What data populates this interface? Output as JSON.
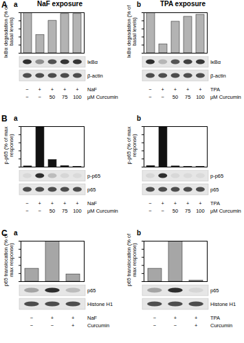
{
  "chart_data": [
    {
      "type": "bar",
      "title": "NaF exposure",
      "y_label": "IκBα degradation (% of basal levels)",
      "categories": [
        null,
        null,
        null,
        null,
        null
      ],
      "values": [
        100,
        45,
        80,
        97,
        97
      ],
      "color": "#b3b3b3",
      "ylim": [
        0,
        100
      ],
      "yticks": [
        0,
        20,
        40,
        60,
        80,
        100
      ],
      "tick_labels": false,
      "annotations": {
        "panel": "A",
        "subpanel": "a",
        "blot_labels": [
          "IκBα",
          "β-actin"
        ],
        "conditions": [
          {
            "label": "NaF",
            "values": [
              "−",
              "+",
              "+",
              "+",
              "+"
            ]
          },
          {
            "label": "µM Curcumin",
            "values": [
              "−",
              "−",
              "50",
              "75",
              "100"
            ]
          }
        ]
      }
    },
    {
      "type": "bar",
      "title": "TPA exposure",
      "y_label": "IκBα degradation (% of basal levels)",
      "categories": [
        null,
        null,
        null,
        null,
        null
      ],
      "values": [
        100,
        22,
        78,
        90,
        95
      ],
      "color": "#b3b3b3",
      "ylim": [
        0,
        100
      ],
      "yticks": [
        0,
        20,
        40,
        60,
        80,
        100
      ],
      "tick_labels": false,
      "annotations": {
        "subpanel": "b",
        "blot_labels": [
          "IκBα",
          "β-actin"
        ],
        "conditions": [
          {
            "label": "TPA",
            "values": [
              "−",
              "+",
              "+",
              "+",
              "+"
            ]
          },
          {
            "label": "µM Curcumin",
            "values": [
              "−",
              "−",
              "50",
              "75",
              "100"
            ]
          }
        ]
      }
    },
    {
      "type": "bar",
      "y_label": "p-p65 (% of max response)",
      "categories": [
        null,
        null,
        null,
        null,
        null
      ],
      "values": [
        2,
        100,
        18,
        3,
        1
      ],
      "color": "#111111",
      "ylim": [
        0,
        100
      ],
      "yticks": [
        0,
        20,
        40,
        60,
        80,
        100
      ],
      "tick_labels": false,
      "annotations": {
        "panel": "B",
        "subpanel": "a",
        "blot_labels": [
          "p-p65",
          "p65"
        ],
        "conditions": [
          {
            "label": "NaF",
            "values": [
              "−",
              "+",
              "+",
              "+",
              "+"
            ]
          },
          {
            "label": "µM Curcumin",
            "values": [
              "−",
              "−",
              "50",
              "75",
              "100"
            ]
          }
        ]
      }
    },
    {
      "type": "bar",
      "y_label": "p-p65 (% of max response)",
      "categories": [
        null,
        null,
        null,
        null,
        null
      ],
      "values": [
        3,
        100,
        2,
        1,
        1
      ],
      "color": "#111111",
      "ylim": [
        0,
        100
      ],
      "yticks": [
        0,
        20,
        40,
        60,
        80,
        100
      ],
      "tick_labels": false,
      "annotations": {
        "subpanel": "b",
        "blot_labels": [
          "p-p65",
          "p65"
        ],
        "conditions": [
          {
            "label": "TPA",
            "values": [
              "−",
              "+",
              "+",
              "+",
              "+"
            ]
          },
          {
            "label": "µM Curcumin",
            "values": [
              "−",
              "−",
              "50",
              "75",
              "100"
            ]
          }
        ]
      }
    },
    {
      "type": "bar",
      "y_label": "p65 translocation (% of max response)",
      "categories": [
        null,
        null,
        null
      ],
      "values": [
        32,
        100,
        18
      ],
      "color": "#a6a6a6",
      "ylim": [
        0,
        100
      ],
      "yticks": [
        0,
        20,
        40,
        60,
        80,
        100
      ],
      "tick_labels": false,
      "annotations": {
        "panel": "C",
        "subpanel": "a",
        "blot_labels": [
          "p65",
          "Histone H1"
        ],
        "conditions": [
          {
            "label": "NaF",
            "values": [
              "−",
              "+",
              "+"
            ]
          },
          {
            "label": "Curcumin",
            "values": [
              "−",
              "−",
              "+"
            ]
          }
        ]
      }
    },
    {
      "type": "bar",
      "y_label": "p65 translocation (% of max response)",
      "categories": [
        null,
        null,
        null
      ],
      "values": [
        32,
        100,
        3
      ],
      "color": "#a6a6a6",
      "ylim": [
        0,
        100
      ],
      "yticks": [
        0,
        20,
        40,
        60,
        80,
        100
      ],
      "tick_labels": false,
      "annotations": {
        "subpanel": "b",
        "blot_labels": [
          "p65",
          "Histone H1"
        ],
        "conditions": [
          {
            "label": "TPA",
            "values": [
              "−",
              "+",
              "+"
            ]
          },
          {
            "label": "Curcumin",
            "values": [
              "−",
              "−",
              "+"
            ]
          }
        ]
      }
    }
  ]
}
